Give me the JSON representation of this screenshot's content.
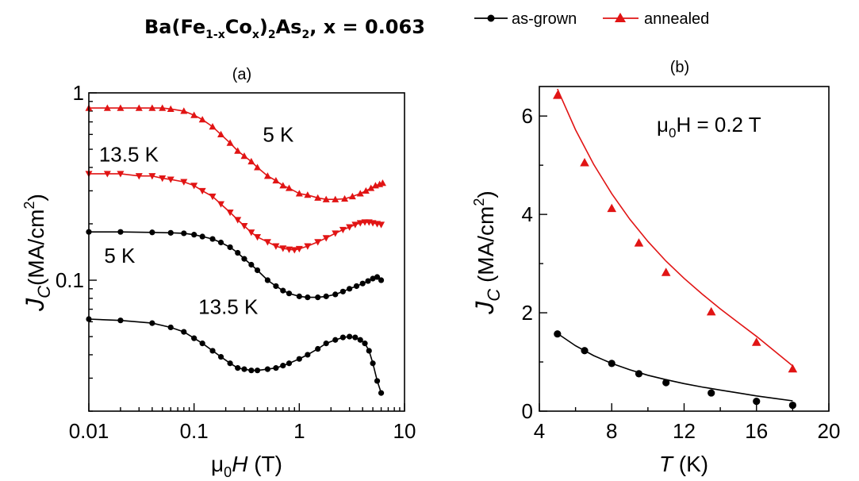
{
  "title": {
    "base": "Ba(Fe",
    "sub1": "1-x",
    "mid1": "Co",
    "sub2": "x",
    "mid2": ")",
    "sub3": "2",
    "mid3": "As",
    "sub4": "2",
    "tail": ", x = 0.063"
  },
  "legend": [
    {
      "label": "as-grown",
      "color": "#000000",
      "marker": "circle"
    },
    {
      "label": "annealed",
      "color": "#e11414",
      "marker": "triangle-up"
    }
  ],
  "colors": {
    "black": "#000000",
    "red": "#e11414"
  },
  "chart_data": [
    {
      "type": "line",
      "panel_label": "(a)",
      "xscale": "log",
      "yscale": "log",
      "xlim": [
        0.01,
        10
      ],
      "ylim": [
        0.02,
        1
      ],
      "x_ticks": [
        {
          "v": 0.01,
          "label": "0.01"
        },
        {
          "v": 0.1,
          "label": "0.1"
        },
        {
          "v": 1,
          "label": "1"
        },
        {
          "v": 10,
          "label": "10"
        }
      ],
      "y_ticks": [
        {
          "v": 0.1,
          "label": "0.1"
        },
        {
          "v": 1,
          "label": "1"
        }
      ],
      "xlabel": {
        "pre": "μ",
        "sub": "0",
        "var": "H",
        "post": " (T)"
      },
      "ylabel": {
        "var": "J",
        "sub": "C",
        "post": "(MA/cm",
        "sup": "2",
        "end": ")"
      },
      "series": [
        {
          "label": "5 K",
          "group": "annealed",
          "marker": "triangle-up",
          "color": "#e11414",
          "x": [
            0.01,
            0.015,
            0.02,
            0.03,
            0.04,
            0.05,
            0.06,
            0.08,
            0.1,
            0.12,
            0.15,
            0.18,
            0.22,
            0.26,
            0.3,
            0.35,
            0.4,
            0.5,
            0.6,
            0.7,
            0.8,
            1.0,
            1.2,
            1.5,
            1.8,
            2.2,
            2.7,
            3.2,
            3.8,
            4.3,
            4.8,
            5.3,
            5.8,
            6.2
          ],
          "y": [
            0.83,
            0.83,
            0.83,
            0.83,
            0.83,
            0.83,
            0.82,
            0.8,
            0.76,
            0.72,
            0.66,
            0.6,
            0.54,
            0.49,
            0.46,
            0.43,
            0.4,
            0.36,
            0.34,
            0.32,
            0.31,
            0.29,
            0.285,
            0.275,
            0.27,
            0.27,
            0.272,
            0.28,
            0.29,
            0.3,
            0.31,
            0.32,
            0.325,
            0.33
          ],
          "annotation": {
            "text": "5 K",
            "x": 0.45,
            "y": 0.55
          }
        },
        {
          "label": "13.5 K",
          "group": "annealed",
          "marker": "triangle-down",
          "color": "#e11414",
          "x": [
            0.01,
            0.015,
            0.02,
            0.03,
            0.04,
            0.05,
            0.06,
            0.08,
            0.1,
            0.12,
            0.15,
            0.18,
            0.22,
            0.26,
            0.3,
            0.35,
            0.4,
            0.5,
            0.6,
            0.7,
            0.8,
            0.9,
            1.0,
            1.2,
            1.5,
            1.8,
            2.2,
            2.6,
            3.0,
            3.4,
            3.8,
            4.2,
            4.6,
            5.0,
            5.5,
            6.0
          ],
          "y": [
            0.37,
            0.37,
            0.37,
            0.36,
            0.36,
            0.35,
            0.345,
            0.335,
            0.32,
            0.3,
            0.28,
            0.255,
            0.23,
            0.21,
            0.195,
            0.18,
            0.17,
            0.16,
            0.152,
            0.148,
            0.146,
            0.145,
            0.147,
            0.152,
            0.16,
            0.168,
            0.178,
            0.186,
            0.192,
            0.198,
            0.202,
            0.204,
            0.204,
            0.202,
            0.2,
            0.198
          ],
          "annotation": {
            "text": "13.5 K",
            "x": 0.0125,
            "y": 0.43
          }
        },
        {
          "label": "5 K",
          "group": "as-grown",
          "marker": "circle",
          "color": "#000000",
          "x": [
            0.01,
            0.02,
            0.04,
            0.06,
            0.08,
            0.1,
            0.12,
            0.15,
            0.18,
            0.22,
            0.26,
            0.3,
            0.35,
            0.4,
            0.5,
            0.6,
            0.7,
            0.8,
            1.0,
            1.2,
            1.5,
            1.8,
            2.2,
            2.6,
            3.0,
            3.5,
            4.0,
            4.5,
            5.0,
            5.5,
            6.0
          ],
          "y": [
            0.181,
            0.181,
            0.18,
            0.179,
            0.178,
            0.175,
            0.171,
            0.166,
            0.159,
            0.15,
            0.14,
            0.13,
            0.121,
            0.113,
            0.1,
            0.093,
            0.088,
            0.085,
            0.082,
            0.081,
            0.081,
            0.082,
            0.084,
            0.087,
            0.09,
            0.093,
            0.096,
            0.099,
            0.102,
            0.104,
            0.1
          ],
          "annotation": {
            "text": "5 K",
            "x": 0.014,
            "y": 0.124
          }
        },
        {
          "label": "13.5 K",
          "group": "as-grown",
          "marker": "circle",
          "color": "#000000",
          "x": [
            0.01,
            0.02,
            0.04,
            0.06,
            0.08,
            0.1,
            0.12,
            0.15,
            0.18,
            0.22,
            0.26,
            0.3,
            0.35,
            0.4,
            0.5,
            0.6,
            0.7,
            0.8,
            1.0,
            1.2,
            1.5,
            1.8,
            2.2,
            2.6,
            3.0,
            3.4,
            3.8,
            4.2,
            4.6,
            5.0,
            5.5,
            6.0
          ],
          "y": [
            0.062,
            0.061,
            0.059,
            0.056,
            0.053,
            0.049,
            0.046,
            0.042,
            0.039,
            0.036,
            0.034,
            0.0335,
            0.033,
            0.033,
            0.0335,
            0.034,
            0.035,
            0.036,
            0.038,
            0.04,
            0.043,
            0.046,
            0.048,
            0.0495,
            0.05,
            0.0495,
            0.048,
            0.046,
            0.042,
            0.036,
            0.029,
            0.025
          ],
          "annotation": {
            "text": "13.5 K",
            "x": 0.11,
            "y": 0.066
          }
        }
      ]
    },
    {
      "type": "scatter",
      "panel_label": "(b)",
      "xlim": [
        4,
        20
      ],
      "ylim": [
        0,
        6.6
      ],
      "x_ticks": [
        {
          "v": 4,
          "label": "4"
        },
        {
          "v": 8,
          "label": "8"
        },
        {
          "v": 12,
          "label": "12"
        },
        {
          "v": 16,
          "label": "16"
        },
        {
          "v": 20,
          "label": "20"
        }
      ],
      "y_ticks": [
        {
          "v": 0,
          "label": "0"
        },
        {
          "v": 2,
          "label": "2"
        },
        {
          "v": 4,
          "label": "4"
        },
        {
          "v": 6,
          "label": "6"
        }
      ],
      "xlabel": {
        "var": "T",
        "post": " (K)"
      },
      "ylabel": {
        "var": "J",
        "sub": "C",
        "post": " (MA/cm",
        "sup": "2",
        "end": ")"
      },
      "annotation": {
        "pre": "μ",
        "sub": "0",
        "post": "H = 0.2 T"
      },
      "series": [
        {
          "group": "annealed",
          "marker": "triangle-up",
          "color": "#e11414",
          "x": [
            5,
            6.5,
            8,
            9.5,
            11,
            13.5,
            16,
            18
          ],
          "y": [
            6.42,
            5.05,
            4.12,
            3.42,
            2.82,
            2.02,
            1.4,
            0.86
          ],
          "fit_x": [
            5,
            6,
            7,
            8,
            9,
            10,
            11,
            12,
            13,
            14,
            15,
            16,
            17,
            18
          ],
          "fit_y": [
            6.55,
            5.72,
            5.02,
            4.42,
            3.9,
            3.45,
            3.05,
            2.7,
            2.38,
            2.08,
            1.8,
            1.52,
            1.22,
            0.92
          ]
        },
        {
          "group": "as-grown",
          "marker": "circle",
          "color": "#000000",
          "x": [
            5,
            6.5,
            8,
            9.5,
            11,
            13.5,
            16,
            18
          ],
          "y": [
            1.57,
            1.23,
            0.97,
            0.76,
            0.58,
            0.37,
            0.2,
            0.12
          ],
          "fit_x": [
            5,
            6,
            7,
            8,
            9,
            10,
            11,
            12,
            13,
            14,
            15,
            16,
            17,
            18
          ],
          "fit_y": [
            1.58,
            1.33,
            1.13,
            0.97,
            0.84,
            0.73,
            0.64,
            0.56,
            0.49,
            0.43,
            0.37,
            0.31,
            0.26,
            0.21
          ]
        }
      ]
    }
  ]
}
